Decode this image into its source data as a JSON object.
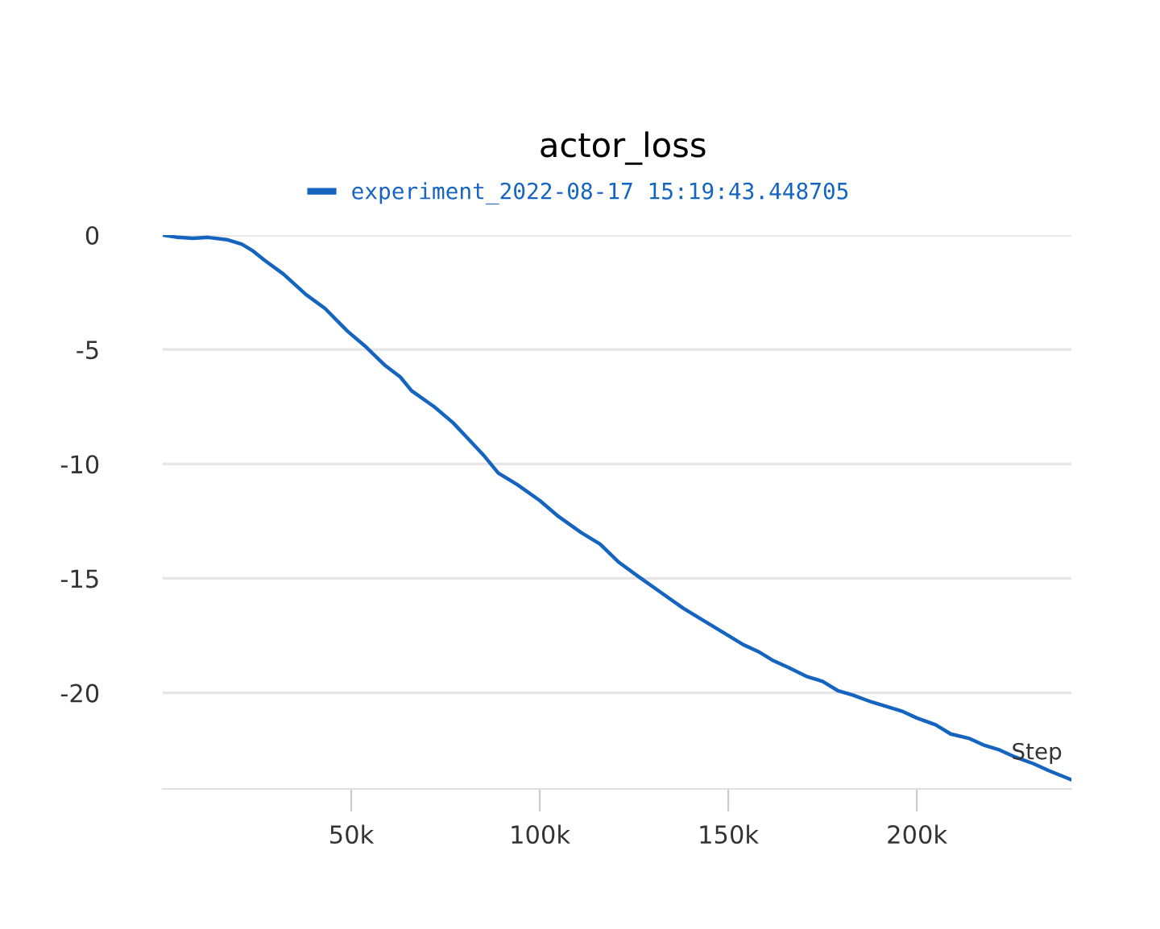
{
  "chart_data": {
    "type": "line",
    "title": "actor_loss",
    "xlabel": "Step",
    "x": [
      0,
      4000,
      8000,
      12000,
      17000,
      21000,
      24000,
      27000,
      32000,
      38000,
      43000,
      49000,
      54000,
      59000,
      63000,
      66000,
      72000,
      77000,
      81000,
      85000,
      89000,
      94000,
      100000,
      105000,
      111000,
      116000,
      121000,
      126000,
      132000,
      138000,
      143000,
      149000,
      154000,
      158000,
      162000,
      166000,
      171000,
      175000,
      179000,
      183000,
      188000,
      192000,
      196000,
      200000,
      205000,
      209000,
      214000,
      218000,
      222000,
      226000,
      231000,
      235000,
      241000
    ],
    "series": [
      {
        "name": "experiment_2022-08-17 15:19:43.448705",
        "color": "#1565c0",
        "values": [
          0,
          -0.1,
          -0.14,
          -0.1,
          -0.2,
          -0.4,
          -0.7,
          -1.1,
          -1.7,
          -2.6,
          -3.2,
          -4.2,
          -4.9,
          -5.7,
          -6.2,
          -6.8,
          -7.5,
          -8.2,
          -8.9,
          -9.6,
          -10.4,
          -10.9,
          -11.6,
          -12.3,
          -13.0,
          -13.5,
          -14.3,
          -14.9,
          -15.6,
          -16.3,
          -16.8,
          -17.4,
          -17.9,
          -18.2,
          -18.6,
          -18.9,
          -19.3,
          -19.5,
          -19.9,
          -20.1,
          -20.4,
          -20.6,
          -20.8,
          -21.1,
          -21.4,
          -21.8,
          -22.0,
          -22.3,
          -22.5,
          -22.8,
          -23.1,
          -23.4,
          -23.8
        ]
      }
    ],
    "xlim": [
      0,
      241000
    ],
    "ylim": [
      -24.2,
      0
    ],
    "xticks": [
      {
        "value": 50000,
        "label": "50k"
      },
      {
        "value": 100000,
        "label": "100k"
      },
      {
        "value": 150000,
        "label": "150k"
      },
      {
        "value": 200000,
        "label": "200k"
      }
    ],
    "yticks": [
      0,
      -5,
      -10,
      -15,
      -20
    ],
    "grid": "y",
    "legend": "top",
    "marker": "none",
    "line_style": "solid"
  }
}
